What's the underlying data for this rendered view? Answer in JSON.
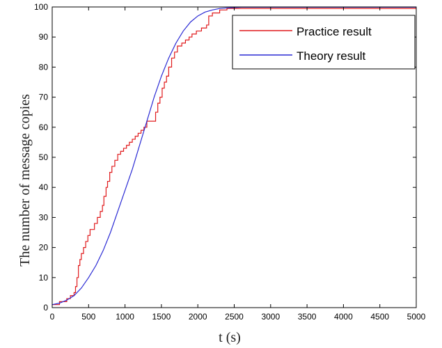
{
  "chart_data": {
    "type": "line",
    "title": "",
    "xlabel": "t (s)",
    "ylabel": "The number of message copies",
    "xlim": [
      0,
      5000
    ],
    "ylim": [
      0,
      100
    ],
    "xticks": [
      0,
      500,
      1000,
      1500,
      2000,
      2500,
      3000,
      3500,
      4000,
      4500,
      5000
    ],
    "yticks": [
      0,
      10,
      20,
      30,
      40,
      50,
      60,
      70,
      80,
      90,
      100
    ],
    "grid": false,
    "legend_position": "top-right",
    "series": [
      {
        "name": "Practice result",
        "color": "#e0191b",
        "style": "step",
        "points": [
          [
            0,
            1
          ],
          [
            100,
            2
          ],
          [
            200,
            3
          ],
          [
            250,
            4
          ],
          [
            300,
            5
          ],
          [
            320,
            7
          ],
          [
            340,
            10
          ],
          [
            360,
            14
          ],
          [
            380,
            16
          ],
          [
            400,
            18
          ],
          [
            430,
            20
          ],
          [
            460,
            22
          ],
          [
            490,
            24
          ],
          [
            520,
            26
          ],
          [
            580,
            28
          ],
          [
            620,
            30
          ],
          [
            660,
            32
          ],
          [
            690,
            34
          ],
          [
            710,
            37
          ],
          [
            740,
            40
          ],
          [
            760,
            42
          ],
          [
            790,
            45
          ],
          [
            820,
            47
          ],
          [
            860,
            49
          ],
          [
            900,
            51
          ],
          [
            940,
            52
          ],
          [
            980,
            53
          ],
          [
            1020,
            54
          ],
          [
            1060,
            55
          ],
          [
            1100,
            56
          ],
          [
            1140,
            57
          ],
          [
            1180,
            58
          ],
          [
            1220,
            59
          ],
          [
            1260,
            60
          ],
          [
            1300,
            62
          ],
          [
            1380,
            62
          ],
          [
            1420,
            65
          ],
          [
            1450,
            68
          ],
          [
            1480,
            70
          ],
          [
            1510,
            73
          ],
          [
            1540,
            75
          ],
          [
            1570,
            77
          ],
          [
            1600,
            80
          ],
          [
            1640,
            83
          ],
          [
            1680,
            85
          ],
          [
            1720,
            87
          ],
          [
            1780,
            88
          ],
          [
            1830,
            89
          ],
          [
            1880,
            90
          ],
          [
            1920,
            91
          ],
          [
            1980,
            92
          ],
          [
            2050,
            93
          ],
          [
            2120,
            94
          ],
          [
            2150,
            97
          ],
          [
            2200,
            98
          ],
          [
            2300,
            99
          ],
          [
            2400,
            99.5
          ],
          [
            2600,
            99.5
          ],
          [
            5000,
            99.5
          ]
        ]
      },
      {
        "name": "Theory result",
        "color": "#2a2ad4",
        "style": "line",
        "points": [
          [
            0,
            1
          ],
          [
            100,
            1.5
          ],
          [
            200,
            2.5
          ],
          [
            300,
            4
          ],
          [
            400,
            6.5
          ],
          [
            500,
            10
          ],
          [
            600,
            14
          ],
          [
            700,
            19
          ],
          [
            800,
            25
          ],
          [
            900,
            32
          ],
          [
            1000,
            39
          ],
          [
            1100,
            46
          ],
          [
            1200,
            54
          ],
          [
            1300,
            62
          ],
          [
            1400,
            70
          ],
          [
            1500,
            77
          ],
          [
            1600,
            83
          ],
          [
            1700,
            88
          ],
          [
            1800,
            92
          ],
          [
            1900,
            95
          ],
          [
            2000,
            97
          ],
          [
            2100,
            98.3
          ],
          [
            2200,
            99
          ],
          [
            2300,
            99.5
          ],
          [
            2400,
            99.7
          ],
          [
            2600,
            99.9
          ],
          [
            3000,
            99.9
          ],
          [
            5000,
            99.9
          ]
        ]
      }
    ]
  }
}
